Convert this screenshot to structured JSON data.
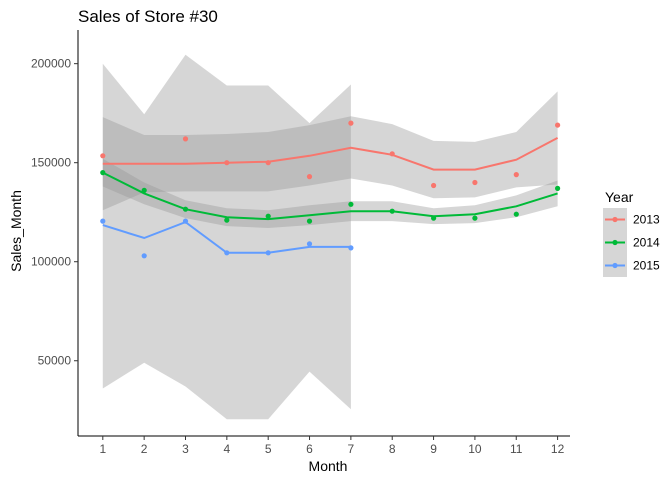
{
  "chart_data": {
    "type": "line",
    "title": "Sales of Store #30",
    "xlabel": "Month",
    "ylabel": "Sales_Month",
    "x_ticks": [
      1,
      2,
      3,
      4,
      5,
      6,
      7,
      8,
      9,
      10,
      11,
      12
    ],
    "y_ticks": [
      50000,
      100000,
      150000,
      200000
    ],
    "y_tick_labels": [
      "50000",
      "100000",
      "150000",
      "200000"
    ],
    "xlim": [
      0.4,
      12.3
    ],
    "ylim": [
      12000,
      217000
    ],
    "grid": false,
    "legend_title": "Year",
    "legend_position": "right",
    "series": [
      {
        "name": "2013",
        "color": "#f8766d",
        "points": [
          [
            1,
            153500
          ],
          [
            3,
            162000
          ],
          [
            4,
            150000
          ],
          [
            5,
            150000
          ],
          [
            6,
            143000
          ],
          [
            7,
            170000
          ],
          [
            8,
            154500
          ],
          [
            9,
            138500
          ],
          [
            10,
            140000
          ],
          [
            11,
            144000
          ],
          [
            12,
            169000
          ]
        ],
        "smooth": [
          [
            1,
            149500
          ],
          [
            2,
            149500
          ],
          [
            3,
            149500
          ],
          [
            4,
            150000
          ],
          [
            5,
            150500
          ],
          [
            6,
            153500
          ],
          [
            7,
            157500
          ],
          [
            8,
            154000
          ],
          [
            9,
            146500
          ],
          [
            10,
            146500
          ],
          [
            11,
            151500
          ],
          [
            12,
            162500
          ]
        ],
        "band_low": [
          [
            1,
            126000
          ],
          [
            2,
            135000
          ],
          [
            3,
            135500
          ],
          [
            4,
            135500
          ],
          [
            5,
            135500
          ],
          [
            6,
            138500
          ],
          [
            7,
            142000
          ],
          [
            8,
            138500
          ],
          [
            9,
            132000
          ],
          [
            10,
            132500
          ],
          [
            11,
            137500
          ],
          [
            12,
            139000
          ]
        ],
        "band_high": [
          [
            1,
            173000
          ],
          [
            2,
            164000
          ],
          [
            3,
            164000
          ],
          [
            4,
            164500
          ],
          [
            5,
            165500
          ],
          [
            6,
            169000
          ],
          [
            7,
            173500
          ],
          [
            8,
            169500
          ],
          [
            9,
            161000
          ],
          [
            10,
            160500
          ],
          [
            11,
            165500
          ],
          [
            12,
            186000
          ]
        ]
      },
      {
        "name": "2014",
        "color": "#00ba38",
        "points": [
          [
            1,
            145000
          ],
          [
            2,
            136000
          ],
          [
            3,
            126500
          ],
          [
            4,
            121000
          ],
          [
            5,
            123000
          ],
          [
            6,
            120500
          ],
          [
            7,
            129000
          ],
          [
            8,
            125500
          ],
          [
            9,
            122000
          ],
          [
            10,
            122000
          ],
          [
            11,
            124000
          ],
          [
            12,
            137000
          ]
        ],
        "smooth": [
          [
            1,
            145000
          ],
          [
            2,
            134500
          ],
          [
            3,
            126500
          ],
          [
            4,
            122500
          ],
          [
            5,
            121500
          ],
          [
            6,
            123500
          ],
          [
            7,
            125500
          ],
          [
            8,
            125500
          ],
          [
            9,
            123000
          ],
          [
            10,
            124000
          ],
          [
            11,
            128000
          ],
          [
            12,
            134500
          ]
        ],
        "band_low": [
          [
            1,
            138000
          ],
          [
            2,
            129000
          ],
          [
            3,
            122000
          ],
          [
            4,
            118000
          ],
          [
            5,
            117000
          ],
          [
            6,
            118500
          ],
          [
            7,
            120500
          ],
          [
            8,
            120500
          ],
          [
            9,
            119000
          ],
          [
            10,
            119500
          ],
          [
            11,
            122500
          ],
          [
            12,
            128000
          ]
        ],
        "band_high": [
          [
            1,
            152000
          ],
          [
            2,
            140000
          ],
          [
            3,
            131000
          ],
          [
            4,
            127000
          ],
          [
            5,
            126000
          ],
          [
            6,
            128500
          ],
          [
            7,
            130500
          ],
          [
            8,
            130500
          ],
          [
            9,
            127000
          ],
          [
            10,
            128500
          ],
          [
            11,
            133500
          ],
          [
            12,
            141000
          ]
        ]
      },
      {
        "name": "2015",
        "color": "#619cff",
        "points": [
          [
            1,
            120500
          ],
          [
            2,
            103000
          ],
          [
            3,
            120500
          ],
          [
            4,
            104500
          ],
          [
            5,
            104500
          ],
          [
            6,
            109000
          ],
          [
            7,
            107000
          ]
        ],
        "smooth": [
          [
            1,
            118500
          ],
          [
            2,
            112000
          ],
          [
            3,
            120000
          ],
          [
            4,
            104500
          ],
          [
            5,
            104500
          ],
          [
            6,
            107500
          ],
          [
            7,
            107500
          ]
        ],
        "band_low": [
          [
            1,
            36000
          ],
          [
            2,
            49000
          ],
          [
            3,
            37000
          ],
          [
            4,
            20500
          ],
          [
            5,
            20500
          ],
          [
            6,
            44500
          ],
          [
            7,
            25500
          ]
        ],
        "band_high": [
          [
            1,
            200000
          ],
          [
            2,
            174500
          ],
          [
            3,
            204500
          ],
          [
            4,
            189000
          ],
          [
            5,
            189000
          ],
          [
            6,
            170000
          ],
          [
            7,
            189500
          ]
        ]
      }
    ]
  },
  "colors": {
    "band": "#999999",
    "axis": "#000000"
  }
}
